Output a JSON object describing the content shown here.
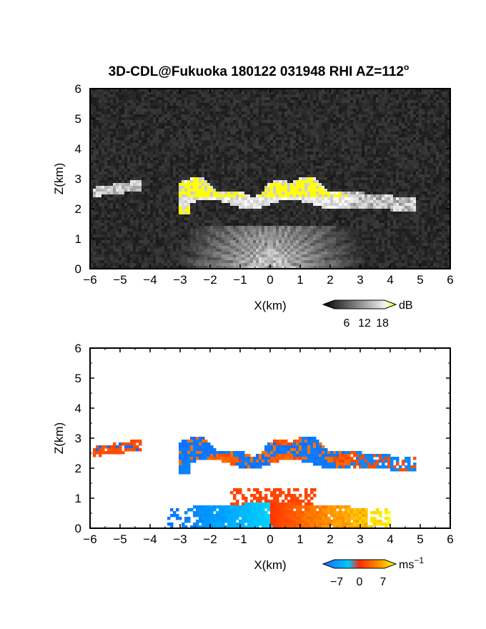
{
  "chart_data": [
    {
      "type": "heatmap",
      "title": "3D-CDL@Fukuoka 180122 031948 RHI AZ=112",
      "title_superscript": "o",
      "quantity": "backscatter",
      "xlabel": "X(km)",
      "ylabel": "Z(km)",
      "xlim": [
        -6,
        6
      ],
      "ylim": [
        0,
        6
      ],
      "xticks": [
        "-6",
        "-5",
        "-4",
        "-3",
        "-2",
        "-1",
        "0",
        "1",
        "2",
        "3",
        "4",
        "5",
        "6"
      ],
      "yticks": [
        "0",
        "1",
        "2",
        "3",
        "4",
        "5",
        "6"
      ],
      "background": "#202020",
      "colorbar": {
        "unit": "dB",
        "ticks": [
          "6",
          "12",
          "18"
        ],
        "range": [
          0,
          20
        ],
        "colors": [
          "#000000",
          "#ffffff",
          "#ffff00"
        ]
      },
      "features": [
        {
          "kind": "cloud layer",
          "x_range": [
            -3,
            3.5
          ],
          "z_range": [
            2.1,
            3.2
          ],
          "value": "high (>18 dB)"
        },
        {
          "kind": "cloud fragment",
          "x_range": [
            -6,
            -4.4
          ],
          "z_range": [
            2.4,
            2.9
          ],
          "value": "moderate"
        },
        {
          "kind": "cloud trailing",
          "x_range": [
            2.5,
            6
          ],
          "z_range": [
            1.8,
            2.8
          ],
          "value": "moderate"
        },
        {
          "kind": "near-field fan",
          "x_range": [
            -3.5,
            3.5
          ],
          "z_range": [
            0,
            1.2
          ],
          "value": "moderate"
        }
      ]
    },
    {
      "type": "heatmap",
      "quantity": "Doppler velocity",
      "xlabel": "X(km)",
      "ylabel": "Z(km)",
      "xlim": [
        -6,
        6
      ],
      "ylim": [
        0,
        6
      ],
      "xticks": [
        "-6",
        "-5",
        "-4",
        "-3",
        "-2",
        "-1",
        "0",
        "1",
        "2",
        "3",
        "4",
        "5",
        "6"
      ],
      "yticks": [
        "0",
        "1",
        "2",
        "3",
        "4",
        "5",
        "6"
      ],
      "background": "#ffffff",
      "colorbar": {
        "unit": "ms",
        "unit_superscript": "−1",
        "ticks": [
          "−7",
          "0",
          "7"
        ],
        "range": [
          -10,
          10
        ],
        "colors": [
          "#1e64ff",
          "#00c8ff",
          "#ff2a00",
          "#ff8c00",
          "#ffff00"
        ]
      },
      "features": [
        {
          "kind": "cloud layer",
          "x_range": [
            -3,
            3.5
          ],
          "z_range": [
            2.1,
            3.2
          ],
          "value": "mixed blue / red"
        },
        {
          "kind": "cloud fragment",
          "x_range": [
            -5.9,
            -4.4
          ],
          "z_range": [
            2.35,
            3.0
          ],
          "value": "red"
        },
        {
          "kind": "cloud trailing",
          "x_range": [
            2.5,
            4.8
          ],
          "z_range": [
            1.95,
            2.6
          ],
          "value": "blue with red patches"
        },
        {
          "kind": "boundary layer (approaching)",
          "x_range": [
            -3.4,
            0
          ],
          "z_range": [
            0,
            0.8
          ],
          "value": "cyan / light blue"
        },
        {
          "kind": "boundary layer (receding)",
          "x_range": [
            0,
            4
          ],
          "z_range": [
            0,
            0.8
          ],
          "value": "red / orange / yellow"
        },
        {
          "kind": "mixing layer top",
          "x_range": [
            -1.3,
            1.5
          ],
          "z_range": [
            0.6,
            1.3
          ],
          "value": "red"
        }
      ]
    }
  ]
}
